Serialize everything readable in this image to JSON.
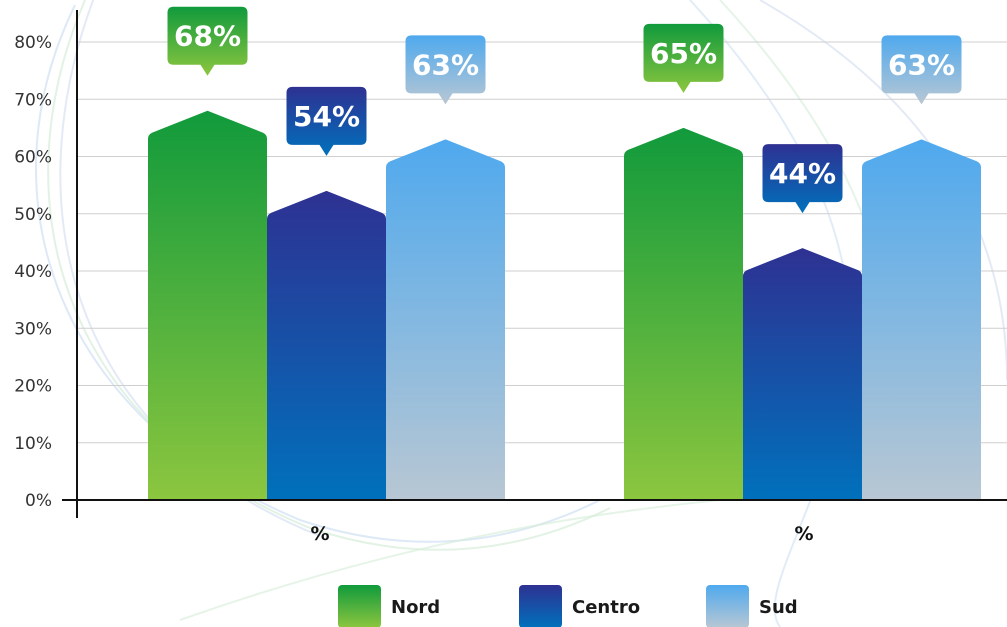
{
  "chart_data": {
    "type": "bar",
    "categories": [
      "%",
      "%"
    ],
    "series": [
      {
        "name": "Nord",
        "values": [
          68,
          65
        ],
        "color_top": "#119a3c",
        "color_bottom": "#8cc63f"
      },
      {
        "name": "Centro",
        "values": [
          54,
          44
        ],
        "color_top": "#2e3192",
        "color_bottom": "#0071bc"
      },
      {
        "name": "Sud",
        "values": [
          63,
          63
        ],
        "color_top": "#4fa9ee",
        "color_bottom": "#b8c7d3"
      }
    ],
    "value_labels": [
      [
        "68%",
        "65%"
      ],
      [
        "54%",
        "44%"
      ],
      [
        "63%",
        "63%"
      ]
    ],
    "yticks": [
      "0%",
      "10%",
      "20%",
      "30%",
      "40%",
      "50%",
      "60%",
      "70%",
      "80%"
    ],
    "ylim": [
      0,
      80
    ],
    "title": "",
    "xlabel": "",
    "ylabel": "",
    "grid": true,
    "legend_position": "bottom-center"
  }
}
